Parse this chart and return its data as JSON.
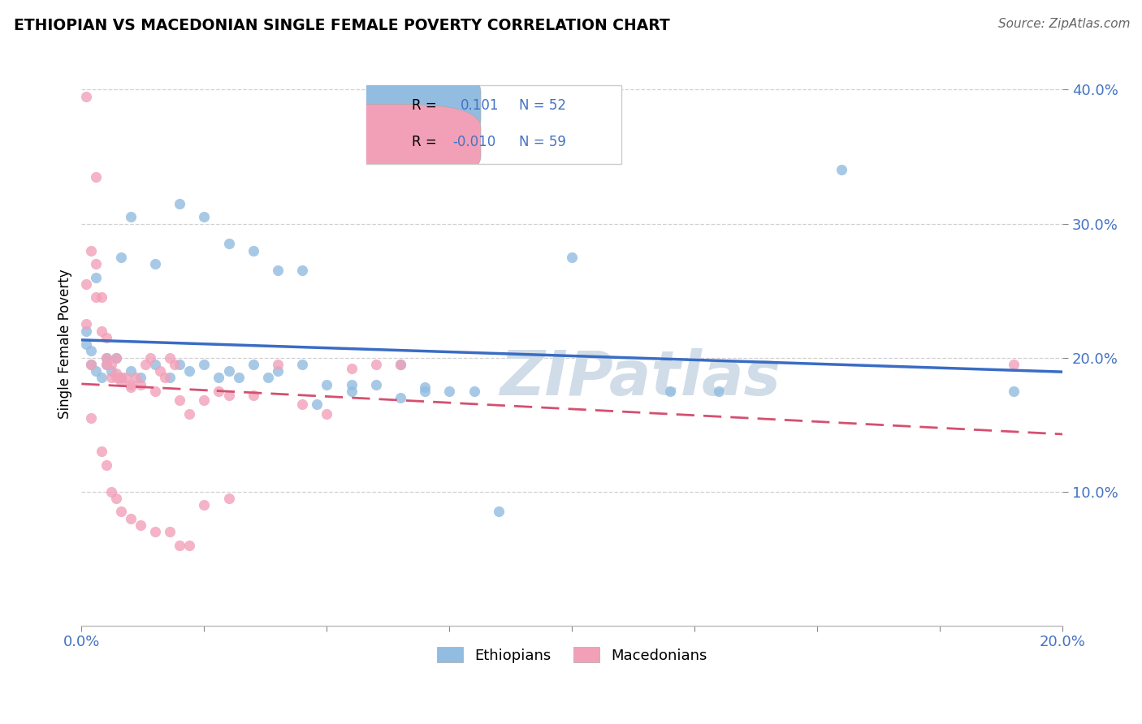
{
  "title": "ETHIOPIAN VS MACEDONIAN SINGLE FEMALE POVERTY CORRELATION CHART",
  "source": "Source: ZipAtlas.com",
  "ylabel": "Single Female Poverty",
  "xlim": [
    0.0,
    0.2
  ],
  "ylim": [
    0.0,
    0.42
  ],
  "ethiopian_color": "#92bce0",
  "macedonian_color": "#f2a0b8",
  "trend_ethiopian_color": "#3a6cc4",
  "trend_macedonian_color": "#d45070",
  "watermark": "ZIPatlas",
  "legend_r1_label": "R = ",
  "legend_r1_val": " 0.101",
  "legend_n1": "N = 52",
  "legend_r2_label": "R = ",
  "legend_r2_val": "-0.010",
  "legend_n2": "N = 59",
  "ethiopian_points": [
    [
      0.001,
      0.22
    ],
    [
      0.001,
      0.21
    ],
    [
      0.002,
      0.195
    ],
    [
      0.002,
      0.205
    ],
    [
      0.003,
      0.19
    ],
    [
      0.003,
      0.26
    ],
    [
      0.004,
      0.185
    ],
    [
      0.005,
      0.195
    ],
    [
      0.005,
      0.2
    ],
    [
      0.006,
      0.19
    ],
    [
      0.007,
      0.2
    ],
    [
      0.008,
      0.185
    ],
    [
      0.008,
      0.275
    ],
    [
      0.01,
      0.19
    ],
    [
      0.01,
      0.305
    ],
    [
      0.012,
      0.185
    ],
    [
      0.015,
      0.195
    ],
    [
      0.015,
      0.27
    ],
    [
      0.018,
      0.185
    ],
    [
      0.02,
      0.195
    ],
    [
      0.02,
      0.315
    ],
    [
      0.022,
      0.19
    ],
    [
      0.025,
      0.195
    ],
    [
      0.025,
      0.305
    ],
    [
      0.028,
      0.185
    ],
    [
      0.03,
      0.19
    ],
    [
      0.03,
      0.285
    ],
    [
      0.032,
      0.185
    ],
    [
      0.035,
      0.195
    ],
    [
      0.035,
      0.28
    ],
    [
      0.038,
      0.185
    ],
    [
      0.04,
      0.19
    ],
    [
      0.04,
      0.265
    ],
    [
      0.045,
      0.195
    ],
    [
      0.045,
      0.265
    ],
    [
      0.048,
      0.165
    ],
    [
      0.05,
      0.18
    ],
    [
      0.055,
      0.175
    ],
    [
      0.055,
      0.18
    ],
    [
      0.06,
      0.18
    ],
    [
      0.065,
      0.195
    ],
    [
      0.065,
      0.17
    ],
    [
      0.07,
      0.178
    ],
    [
      0.07,
      0.175
    ],
    [
      0.075,
      0.175
    ],
    [
      0.08,
      0.175
    ],
    [
      0.085,
      0.085
    ],
    [
      0.1,
      0.275
    ],
    [
      0.12,
      0.175
    ],
    [
      0.13,
      0.175
    ],
    [
      0.155,
      0.34
    ],
    [
      0.19,
      0.175
    ]
  ],
  "macedonian_points": [
    [
      0.001,
      0.395
    ],
    [
      0.001,
      0.255
    ],
    [
      0.001,
      0.225
    ],
    [
      0.002,
      0.28
    ],
    [
      0.002,
      0.195
    ],
    [
      0.002,
      0.155
    ],
    [
      0.003,
      0.27
    ],
    [
      0.003,
      0.245
    ],
    [
      0.003,
      0.335
    ],
    [
      0.004,
      0.245
    ],
    [
      0.004,
      0.22
    ],
    [
      0.004,
      0.13
    ],
    [
      0.005,
      0.215
    ],
    [
      0.005,
      0.2
    ],
    [
      0.005,
      0.195
    ],
    [
      0.005,
      0.12
    ],
    [
      0.006,
      0.195
    ],
    [
      0.006,
      0.185
    ],
    [
      0.006,
      0.1
    ],
    [
      0.007,
      0.185
    ],
    [
      0.007,
      0.188
    ],
    [
      0.007,
      0.2
    ],
    [
      0.007,
      0.095
    ],
    [
      0.008,
      0.185
    ],
    [
      0.008,
      0.182
    ],
    [
      0.008,
      0.085
    ],
    [
      0.009,
      0.185
    ],
    [
      0.01,
      0.18
    ],
    [
      0.01,
      0.178
    ],
    [
      0.01,
      0.08
    ],
    [
      0.011,
      0.185
    ],
    [
      0.012,
      0.18
    ],
    [
      0.012,
      0.075
    ],
    [
      0.013,
      0.195
    ],
    [
      0.014,
      0.2
    ],
    [
      0.015,
      0.175
    ],
    [
      0.015,
      0.07
    ],
    [
      0.016,
      0.19
    ],
    [
      0.017,
      0.185
    ],
    [
      0.018,
      0.2
    ],
    [
      0.018,
      0.07
    ],
    [
      0.019,
      0.195
    ],
    [
      0.02,
      0.168
    ],
    [
      0.02,
      0.06
    ],
    [
      0.022,
      0.158
    ],
    [
      0.022,
      0.06
    ],
    [
      0.025,
      0.168
    ],
    [
      0.025,
      0.09
    ],
    [
      0.028,
      0.175
    ],
    [
      0.03,
      0.172
    ],
    [
      0.03,
      0.095
    ],
    [
      0.035,
      0.172
    ],
    [
      0.04,
      0.195
    ],
    [
      0.045,
      0.165
    ],
    [
      0.05,
      0.158
    ],
    [
      0.055,
      0.192
    ],
    [
      0.06,
      0.195
    ],
    [
      0.065,
      0.195
    ],
    [
      0.19,
      0.195
    ]
  ]
}
